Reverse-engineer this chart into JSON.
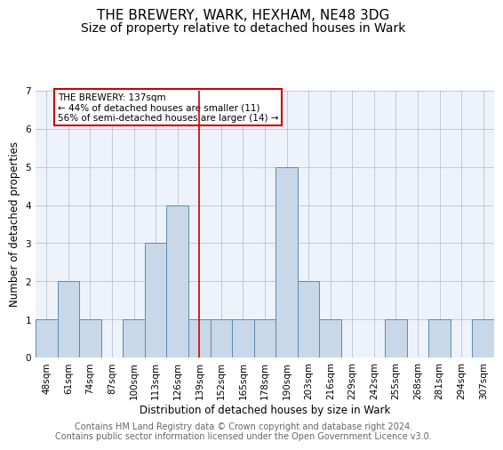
{
  "title1": "THE BREWERY, WARK, HEXHAM, NE48 3DG",
  "title2": "Size of property relative to detached houses in Wark",
  "xlabel": "Distribution of detached houses by size in Wark",
  "ylabel": "Number of detached properties",
  "footnote1": "Contains HM Land Registry data © Crown copyright and database right 2024.",
  "footnote2": "Contains public sector information licensed under the Open Government Licence v3.0.",
  "categories": [
    "48sqm",
    "61sqm",
    "74sqm",
    "87sqm",
    "100sqm",
    "113sqm",
    "126sqm",
    "139sqm",
    "152sqm",
    "165sqm",
    "178sqm",
    "190sqm",
    "203sqm",
    "216sqm",
    "229sqm",
    "242sqm",
    "255sqm",
    "268sqm",
    "281sqm",
    "294sqm",
    "307sqm"
  ],
  "values": [
    1,
    2,
    1,
    0,
    1,
    3,
    4,
    1,
    1,
    1,
    1,
    5,
    2,
    1,
    0,
    0,
    1,
    0,
    1,
    0,
    1
  ],
  "bar_color": "#c8d8e8",
  "bar_edge_color": "#5a8ab5",
  "vline_x_idx": 7,
  "vline_color": "#cc0000",
  "annotation_text": "THE BREWERY: 137sqm\n← 44% of detached houses are smaller (11)\n56% of semi-detached houses are larger (14) →",
  "ylim": [
    0,
    7
  ],
  "yticks": [
    0,
    1,
    2,
    3,
    4,
    5,
    6,
    7
  ],
  "background_color": "#eef2fa",
  "grid_color": "#b0b8d0",
  "title1_fontsize": 11,
  "title2_fontsize": 10,
  "axis_label_fontsize": 8.5,
  "tick_fontsize": 7.5,
  "annotation_fontsize": 7.5,
  "footnote_fontsize": 7.0
}
